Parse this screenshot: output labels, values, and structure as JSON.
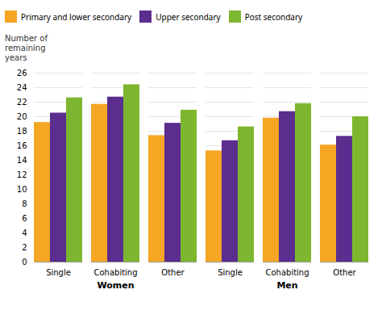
{
  "chart_data": {
    "type": "bar",
    "categories": [
      "Single",
      "Cohabiting",
      "Other",
      "Single",
      "Cohabiting",
      "Other"
    ],
    "annotations": [
      "Women",
      "Men"
    ],
    "ylabel": "Number of\nremaining\nyears",
    "series": [
      {
        "name": "Primary and lower secondary",
        "color": "#F5A623",
        "values": [
          19.2,
          21.7,
          17.4,
          15.3,
          19.8,
          16.1
        ]
      },
      {
        "name": "Upper secondary",
        "color": "#5B2D8E",
        "values": [
          20.5,
          22.7,
          19.1,
          16.7,
          20.7,
          17.3
        ]
      },
      {
        "name": "Post secondary",
        "color": "#7DB72F",
        "values": [
          22.6,
          24.4,
          20.9,
          18.6,
          21.8,
          20.0
        ]
      }
    ],
    "ylim": [
      0,
      26
    ],
    "yticks": [
      0,
      2,
      4,
      6,
      8,
      10,
      12,
      14,
      16,
      18,
      20,
      22,
      24,
      26
    ],
    "grid": true,
    "legend": "top"
  }
}
